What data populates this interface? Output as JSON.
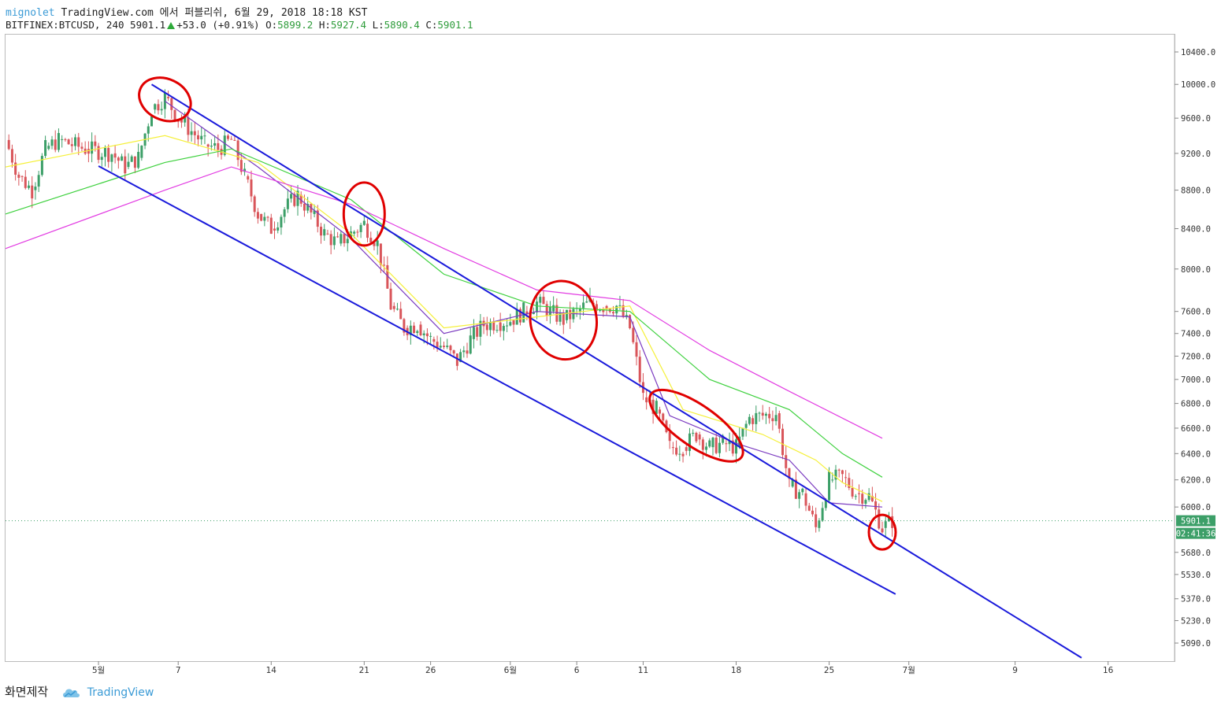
{
  "header": {
    "author": "mignolet",
    "published_text": "TradingView.com 에서 퍼블리쉬, 6월 29, 2018 18:18 KST",
    "symbol_text": "BITFINEX:BTCUSD, 240",
    "last_price": "5901.1",
    "change_text": "+53.0 (+0.91%)",
    "o_label": "O:",
    "o_value": "5899.2",
    "h_label": "H:",
    "h_value": "5927.4",
    "l_label": "L:",
    "l_value": "5890.4",
    "c_label": "C:",
    "c_value": "5901.1"
  },
  "footer": {
    "made_with": "화면제작",
    "brand": "TradingView"
  },
  "colors": {
    "up": "#3c9f68",
    "down": "#d9555a",
    "channel": "#1a1adb",
    "circle": "#e00000",
    "ma_fast": "#7b3bc0",
    "ma_yellow": "#f5f03a",
    "ma_green": "#3fd13f",
    "ma_magenta": "#e23ce2",
    "price_tag": "#3c9f68"
  },
  "chart_data": {
    "type": "candlestick",
    "symbol": "BITFINEX:BTCUSD",
    "timeframe": "240",
    "y_axis_scale": "log",
    "ylim": [
      4980,
      10620
    ],
    "y_ticks": [
      "10400.0",
      "10000.0",
      "9600.0",
      "9200.0",
      "8800.0",
      "8400.0",
      "8000.0",
      "7600.0",
      "7400.0",
      "7200.0",
      "7000.0",
      "6800.0",
      "6600.0",
      "6400.0",
      "6200.0",
      "6000.0",
      "5680.0",
      "5530.0",
      "5370.0",
      "5230.0",
      "5090.0"
    ],
    "x_ticks": [
      {
        "label": "5월",
        "date": "2018-05-01"
      },
      {
        "label": "7",
        "date": "2018-05-07"
      },
      {
        "label": "14",
        "date": "2018-05-14"
      },
      {
        "label": "21",
        "date": "2018-05-21"
      },
      {
        "label": "26",
        "date": "2018-05-26"
      },
      {
        "label": "6월",
        "date": "2018-06-01"
      },
      {
        "label": "6",
        "date": "2018-06-06"
      },
      {
        "label": "11",
        "date": "2018-06-11"
      },
      {
        "label": "18",
        "date": "2018-06-18"
      },
      {
        "label": "25",
        "date": "2018-06-25"
      },
      {
        "label": "7월",
        "date": "2018-07-01"
      },
      {
        "label": "9",
        "date": "2018-07-09"
      },
      {
        "label": "16",
        "date": "2018-07-16"
      }
    ],
    "xlim": [
      "2018-04-24",
      "2018-07-21"
    ],
    "price_series": [
      [
        "2018-04-24",
        9350
      ],
      [
        "2018-04-25",
        8950
      ],
      [
        "2018-04-26",
        8800
      ],
      [
        "2018-04-27",
        9250
      ],
      [
        "2018-04-28",
        9350
      ],
      [
        "2018-04-30",
        9250
      ],
      [
        "2018-05-02",
        9200
      ],
      [
        "2018-05-03",
        9050
      ],
      [
        "2018-05-04",
        9150
      ],
      [
        "2018-05-05",
        9700
      ],
      [
        "2018-05-06",
        9850
      ],
      [
        "2018-05-07",
        9600
      ],
      [
        "2018-05-08",
        9450
      ],
      [
        "2018-05-09",
        9300
      ],
      [
        "2018-05-10",
        9250
      ],
      [
        "2018-05-11",
        9350
      ],
      [
        "2018-05-12",
        8950
      ],
      [
        "2018-05-13",
        8550
      ],
      [
        "2018-05-14",
        8400
      ],
      [
        "2018-05-15",
        8600
      ],
      [
        "2018-05-16",
        8750
      ],
      [
        "2018-05-17",
        8550
      ],
      [
        "2018-05-18",
        8350
      ],
      [
        "2018-05-19",
        8250
      ],
      [
        "2018-05-20",
        8350
      ],
      [
        "2018-05-21",
        8450
      ],
      [
        "2018-05-22",
        8250
      ],
      [
        "2018-05-23",
        7650
      ],
      [
        "2018-05-24",
        7450
      ],
      [
        "2018-05-25",
        7480
      ],
      [
        "2018-05-26",
        7350
      ],
      [
        "2018-05-27",
        7280
      ],
      [
        "2018-05-28",
        7150
      ],
      [
        "2018-05-29",
        7350
      ],
      [
        "2018-05-30",
        7480
      ],
      [
        "2018-05-31",
        7500
      ],
      [
        "2018-06-01",
        7520
      ],
      [
        "2018-06-02",
        7600
      ],
      [
        "2018-06-03",
        7680
      ],
      [
        "2018-06-04",
        7600
      ],
      [
        "2018-06-05",
        7520
      ],
      [
        "2018-06-06",
        7600
      ],
      [
        "2018-06-07",
        7680
      ],
      [
        "2018-06-08",
        7650
      ],
      [
        "2018-06-09",
        7650
      ],
      [
        "2018-06-10",
        7450
      ],
      [
        "2018-06-11",
        6850
      ],
      [
        "2018-06-12",
        6750
      ],
      [
        "2018-06-13",
        6450
      ],
      [
        "2018-06-14",
        6450
      ],
      [
        "2018-06-15",
        6550
      ],
      [
        "2018-06-16",
        6450
      ],
      [
        "2018-06-17",
        6480
      ],
      [
        "2018-06-18",
        6450
      ],
      [
        "2018-06-19",
        6680
      ],
      [
        "2018-06-20",
        6700
      ],
      [
        "2018-06-21",
        6720
      ],
      [
        "2018-06-22",
        6150
      ],
      [
        "2018-06-23",
        6100
      ],
      [
        "2018-06-24",
        5850
      ],
      [
        "2018-06-25",
        6200
      ],
      [
        "2018-06-26",
        6220
      ],
      [
        "2018-06-27",
        6100
      ],
      [
        "2018-06-28",
        6080
      ],
      [
        "2018-06-29",
        5850
      ],
      [
        "2018-06-29T18:00",
        5901.1
      ]
    ],
    "moving_averages": [
      {
        "color": "ma_fast",
        "points": [
          [
            "2018-05-06",
            9800
          ],
          [
            "2018-05-13",
            9050
          ],
          [
            "2018-05-20",
            8300
          ],
          [
            "2018-05-27",
            7400
          ],
          [
            "2018-06-03",
            7600
          ],
          [
            "2018-06-10",
            7550
          ],
          [
            "2018-06-13",
            6700
          ],
          [
            "2018-06-18",
            6480
          ],
          [
            "2018-06-22",
            6350
          ],
          [
            "2018-06-25",
            6030
          ],
          [
            "2018-06-29",
            6000
          ]
        ]
      },
      {
        "color": "ma_yellow",
        "points": [
          [
            "2018-04-24",
            9050
          ],
          [
            "2018-05-06",
            9400
          ],
          [
            "2018-05-13",
            9100
          ],
          [
            "2018-05-20",
            8350
          ],
          [
            "2018-05-27",
            7450
          ],
          [
            "2018-06-03",
            7550
          ],
          [
            "2018-06-10",
            7650
          ],
          [
            "2018-06-14",
            6750
          ],
          [
            "2018-06-20",
            6550
          ],
          [
            "2018-06-24",
            6350
          ],
          [
            "2018-06-26",
            6180
          ],
          [
            "2018-06-29",
            6040
          ]
        ]
      },
      {
        "color": "ma_green",
        "points": [
          [
            "2018-04-24",
            8550
          ],
          [
            "2018-05-06",
            9100
          ],
          [
            "2018-05-11",
            9250
          ],
          [
            "2018-05-20",
            8700
          ],
          [
            "2018-05-27",
            7950
          ],
          [
            "2018-06-03",
            7650
          ],
          [
            "2018-06-10",
            7600
          ],
          [
            "2018-06-16",
            7000
          ],
          [
            "2018-06-22",
            6750
          ],
          [
            "2018-06-26",
            6400
          ],
          [
            "2018-06-29",
            6220
          ]
        ]
      },
      {
        "color": "ma_magenta",
        "points": [
          [
            "2018-04-24",
            8200
          ],
          [
            "2018-05-06",
            8800
          ],
          [
            "2018-05-11",
            9050
          ],
          [
            "2018-05-20",
            8650
          ],
          [
            "2018-05-27",
            8200
          ],
          [
            "2018-06-03",
            7800
          ],
          [
            "2018-06-10",
            7700
          ],
          [
            "2018-06-16",
            7250
          ],
          [
            "2018-06-22",
            6900
          ],
          [
            "2018-06-29",
            6520
          ]
        ]
      }
    ],
    "channel_lines": [
      {
        "name": "upper",
        "from": [
          "2018-05-05",
          10000
        ],
        "to": [
          "2018-07-14",
          5000
        ]
      },
      {
        "name": "lower",
        "from": [
          "2018-05-01",
          9060
        ],
        "to": [
          "2018-06-30",
          5400
        ]
      }
    ],
    "annotations_circles": [
      {
        "at": [
          "2018-05-06",
          9820
        ]
      },
      {
        "at": [
          "2018-05-21",
          8550
        ]
      },
      {
        "at": [
          "2018-06-05",
          7520
        ]
      },
      {
        "at": [
          "2018-06-15",
          6620
        ]
      },
      {
        "at": [
          "2018-06-29",
          5820
        ]
      }
    ],
    "last_price_label": "5901.1",
    "countdown_label": "02:41:36"
  }
}
